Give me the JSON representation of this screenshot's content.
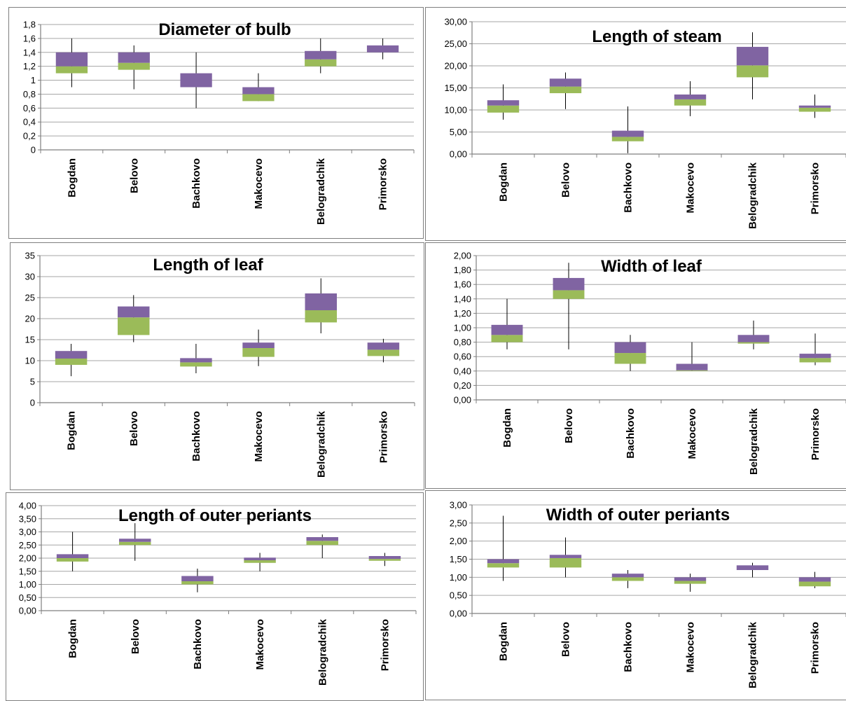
{
  "colors": {
    "upper_box": "#8064a2",
    "lower_box": "#9bbb59",
    "grid": "#a6a6a6",
    "axis": "#7f7f7f"
  },
  "chart_data": [
    {
      "type": "box",
      "title": "Diameter of bulb",
      "categories": [
        "Bogdan",
        "Belovo",
        "Bachkovo",
        "Makocevo",
        "Belogradchik",
        "Primorsko"
      ],
      "yticks": [
        "0",
        "0,2",
        "0,4",
        "0,6",
        "0,8",
        "1",
        "1,2",
        "1,4",
        "1,6",
        "1,8"
      ],
      "ylim": [
        0,
        1.8
      ],
      "min": [
        0.9,
        0.87,
        0.6,
        0.7,
        1.1,
        1.3
      ],
      "q1": [
        1.1,
        1.15,
        0.9,
        0.7,
        1.2,
        1.4
      ],
      "median": [
        1.2,
        1.25,
        0.9,
        0.8,
        1.3,
        1.4
      ],
      "q3": [
        1.4,
        1.4,
        1.1,
        0.9,
        1.42,
        1.5
      ],
      "max": [
        1.6,
        1.5,
        1.4,
        1.1,
        1.6,
        1.6
      ]
    },
    {
      "type": "box",
      "title": "Length of steam",
      "categories": [
        "Bogdan",
        "Belovo",
        "Bachkovo",
        "Makocevo",
        "Belogradchik",
        "Primorsko"
      ],
      "yticks": [
        "0,00",
        "5,00",
        "10,00",
        "15,00",
        "20,00",
        "25,00",
        "30,00"
      ],
      "ylim": [
        0,
        30
      ],
      "min": [
        7.8,
        10.2,
        0.2,
        8.6,
        12.4,
        8.2
      ],
      "q1": [
        9.4,
        13.8,
        2.9,
        11.0,
        17.4,
        9.6
      ],
      "median": [
        11.0,
        15.3,
        3.9,
        12.4,
        20.1,
        10.5
      ],
      "q3": [
        12.2,
        17.1,
        5.3,
        13.5,
        24.3,
        11.0
      ],
      "max": [
        15.8,
        18.5,
        10.8,
        16.5,
        27.6,
        13.5
      ]
    },
    {
      "type": "box",
      "title": "Length of leaf",
      "categories": [
        "Bogdan",
        "Belovo",
        "Bachkovo",
        "Makocevo",
        "Belogradchik",
        "Primorsko"
      ],
      "yticks": [
        "0",
        "5",
        "10",
        "15",
        "20",
        "25",
        "30",
        "35"
      ],
      "ylim": [
        0,
        35
      ],
      "min": [
        6.3,
        14.4,
        7.0,
        8.7,
        16.5,
        9.6
      ],
      "q1": [
        9.0,
        16.1,
        8.6,
        10.9,
        19.1,
        11.1
      ],
      "median": [
        10.5,
        20.3,
        9.6,
        13.0,
        22.0,
        12.6
      ],
      "q3": [
        12.3,
        22.9,
        10.6,
        14.3,
        26.0,
        14.3
      ],
      "max": [
        14.0,
        25.6,
        14.0,
        17.4,
        29.6,
        15.2
      ]
    },
    {
      "type": "box",
      "title": "Width of leaf",
      "categories": [
        "Bogdan",
        "Belovo",
        "Bachkovo",
        "Makocevo",
        "Belogradchik",
        "Primorsko"
      ],
      "yticks": [
        "0,00",
        "0,20",
        "0,40",
        "0,60",
        "0,80",
        "1,00",
        "1,20",
        "1,40",
        "1,60",
        "1,80",
        "2,00"
      ],
      "ylim": [
        0,
        2
      ],
      "min": [
        0.7,
        0.7,
        0.4,
        0.4,
        0.7,
        0.48
      ],
      "q1": [
        0.8,
        1.4,
        0.5,
        0.4,
        0.78,
        0.52
      ],
      "median": [
        0.9,
        1.52,
        0.65,
        0.41,
        0.8,
        0.58
      ],
      "q3": [
        1.04,
        1.69,
        0.8,
        0.5,
        0.9,
        0.64
      ],
      "max": [
        1.4,
        1.9,
        0.9,
        0.8,
        1.1,
        0.92
      ]
    },
    {
      "type": "box",
      "title": "Length of outer periants",
      "categories": [
        "Bogdan",
        "Belovo",
        "Bachkovo",
        "Makocevo",
        "Belogradchik",
        "Primorsko"
      ],
      "yticks": [
        "0,00",
        "0,50",
        "1,00",
        "1,50",
        "2,00",
        "2,50",
        "3,00",
        "3,50",
        "4,00"
      ],
      "ylim": [
        0,
        4
      ],
      "min": [
        1.5,
        1.9,
        0.7,
        1.5,
        2.0,
        1.7
      ],
      "q1": [
        1.87,
        2.5,
        1.0,
        1.82,
        2.5,
        1.9
      ],
      "median": [
        2.0,
        2.62,
        1.12,
        1.92,
        2.66,
        1.97
      ],
      "q3": [
        2.15,
        2.74,
        1.32,
        2.02,
        2.8,
        2.08
      ],
      "max": [
        3.0,
        3.33,
        1.6,
        2.2,
        2.9,
        2.2
      ]
    },
    {
      "type": "box",
      "title": "Width of outer periants",
      "categories": [
        "Bogdan",
        "Belovo",
        "Bachkovo",
        "Makocevo",
        "Belogradchik",
        "Primorsko"
      ],
      "yticks": [
        "0,00",
        "0,50",
        "1,00",
        "1,50",
        "2,00",
        "2,50",
        "3,00"
      ],
      "ylim": [
        0,
        3
      ],
      "min": [
        0.9,
        1.0,
        0.7,
        0.6,
        1.0,
        0.7
      ],
      "q1": [
        1.27,
        1.27,
        0.9,
        0.82,
        1.2,
        0.75
      ],
      "median": [
        1.39,
        1.53,
        1.0,
        0.9,
        1.2,
        0.88
      ],
      "q3": [
        1.5,
        1.62,
        1.1,
        1.0,
        1.33,
        1.0
      ],
      "max": [
        2.7,
        2.1,
        1.2,
        1.1,
        1.4,
        1.15
      ]
    }
  ]
}
